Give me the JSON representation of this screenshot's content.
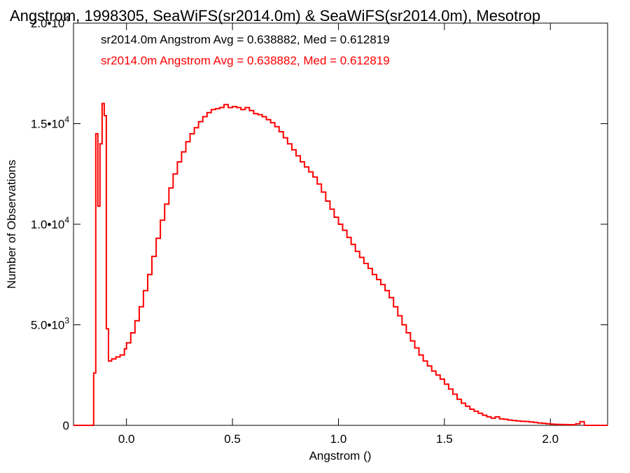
{
  "chart_data": {
    "type": "line",
    "title": "Angstrom, 1998305, SeaWiFS(sr2014.0m) & SeaWiFS(sr2014.0m), Mesotrop",
    "xlabel": "Angstrom ()",
    "ylabel": "Number of Observations",
    "xlim": [
      -0.25,
      2.27
    ],
    "ylim": [
      0,
      20000
    ],
    "xticks": [
      {
        "value": 0.0,
        "label": "0.0"
      },
      {
        "value": 0.5,
        "label": "0.5"
      },
      {
        "value": 1.0,
        "label": "1.0"
      },
      {
        "value": 1.5,
        "label": "1.5"
      },
      {
        "value": 2.0,
        "label": "2.0"
      }
    ],
    "yticks": [
      {
        "value": 0,
        "mant": "0",
        "exp": ""
      },
      {
        "value": 5000,
        "mant": "5.0•10",
        "exp": "3"
      },
      {
        "value": 10000,
        "mant": "1.0•10",
        "exp": "4"
      },
      {
        "value": 15000,
        "mant": "1.5•10",
        "exp": "4"
      },
      {
        "value": 20000,
        "mant": "2.0•10",
        "exp": "4"
      }
    ],
    "grid": false,
    "step": true,
    "annotations": [
      {
        "text": "sr2014.0m Angstrom Avg = 0.638882, Med = 0.612819",
        "color": "#000000"
      },
      {
        "text": "sr2014.0m Angstrom Avg = 0.638882, Med = 0.612819",
        "color": "#ff0000"
      }
    ],
    "series": [
      {
        "color": "#ff0000",
        "points": [
          [
            -0.25,
            0
          ],
          [
            -0.16,
            0
          ],
          [
            -0.155,
            2600
          ],
          [
            -0.145,
            14500
          ],
          [
            -0.135,
            10900
          ],
          [
            -0.125,
            14000
          ],
          [
            -0.115,
            16000
          ],
          [
            -0.105,
            15400
          ],
          [
            -0.095,
            4800
          ],
          [
            -0.085,
            3200
          ],
          [
            -0.07,
            3300
          ],
          [
            -0.05,
            3400
          ],
          [
            -0.03,
            3500
          ],
          [
            -0.01,
            3800
          ],
          [
            0.0,
            4100
          ],
          [
            0.02,
            4600
          ],
          [
            0.04,
            5200
          ],
          [
            0.06,
            5900
          ],
          [
            0.08,
            6700
          ],
          [
            0.1,
            7500
          ],
          [
            0.12,
            8400
          ],
          [
            0.14,
            9300
          ],
          [
            0.16,
            10200
          ],
          [
            0.18,
            11000
          ],
          [
            0.2,
            11800
          ],
          [
            0.22,
            12500
          ],
          [
            0.24,
            13100
          ],
          [
            0.26,
            13600
          ],
          [
            0.28,
            14100
          ],
          [
            0.3,
            14500
          ],
          [
            0.32,
            14800
          ],
          [
            0.34,
            15100
          ],
          [
            0.36,
            15350
          ],
          [
            0.38,
            15550
          ],
          [
            0.4,
            15700
          ],
          [
            0.42,
            15750
          ],
          [
            0.44,
            15800
          ],
          [
            0.46,
            15950
          ],
          [
            0.48,
            15800
          ],
          [
            0.5,
            15850
          ],
          [
            0.52,
            15800
          ],
          [
            0.54,
            15700
          ],
          [
            0.56,
            15800
          ],
          [
            0.58,
            15650
          ],
          [
            0.6,
            15500
          ],
          [
            0.62,
            15450
          ],
          [
            0.64,
            15350
          ],
          [
            0.66,
            15200
          ],
          [
            0.68,
            15050
          ],
          [
            0.7,
            14850
          ],
          [
            0.72,
            14600
          ],
          [
            0.74,
            14300
          ],
          [
            0.76,
            14000
          ],
          [
            0.78,
            13700
          ],
          [
            0.8,
            13400
          ],
          [
            0.82,
            13100
          ],
          [
            0.84,
            12850
          ],
          [
            0.86,
            12600
          ],
          [
            0.88,
            12350
          ],
          [
            0.9,
            12000
          ],
          [
            0.92,
            11600
          ],
          [
            0.94,
            11150
          ],
          [
            0.96,
            10750
          ],
          [
            0.98,
            10350
          ],
          [
            1.0,
            10000
          ],
          [
            1.02,
            9700
          ],
          [
            1.04,
            9350
          ],
          [
            1.06,
            9000
          ],
          [
            1.08,
            8650
          ],
          [
            1.1,
            8350
          ],
          [
            1.12,
            8050
          ],
          [
            1.14,
            7800
          ],
          [
            1.16,
            7500
          ],
          [
            1.18,
            7250
          ],
          [
            1.2,
            7000
          ],
          [
            1.22,
            6700
          ],
          [
            1.24,
            6350
          ],
          [
            1.26,
            5900
          ],
          [
            1.28,
            5450
          ],
          [
            1.3,
            5000
          ],
          [
            1.32,
            4600
          ],
          [
            1.34,
            4200
          ],
          [
            1.36,
            3850
          ],
          [
            1.38,
            3500
          ],
          [
            1.4,
            3200
          ],
          [
            1.42,
            2950
          ],
          [
            1.44,
            2700
          ],
          [
            1.46,
            2500
          ],
          [
            1.48,
            2300
          ],
          [
            1.5,
            2050
          ],
          [
            1.52,
            1800
          ],
          [
            1.54,
            1550
          ],
          [
            1.56,
            1300
          ],
          [
            1.58,
            1100
          ],
          [
            1.6,
            950
          ],
          [
            1.62,
            800
          ],
          [
            1.64,
            700
          ],
          [
            1.66,
            600
          ],
          [
            1.68,
            500
          ],
          [
            1.7,
            430
          ],
          [
            1.72,
            360
          ],
          [
            1.74,
            420
          ],
          [
            1.76,
            320
          ],
          [
            1.78,
            300
          ],
          [
            1.8,
            260
          ],
          [
            1.82,
            240
          ],
          [
            1.84,
            220
          ],
          [
            1.86,
            200
          ],
          [
            1.88,
            190
          ],
          [
            1.9,
            170
          ],
          [
            1.92,
            150
          ],
          [
            1.94,
            120
          ],
          [
            1.96,
            100
          ],
          [
            1.98,
            80
          ],
          [
            2.0,
            60
          ],
          [
            2.02,
            50
          ],
          [
            2.04,
            45
          ],
          [
            2.06,
            40
          ],
          [
            2.08,
            35
          ],
          [
            2.1,
            30
          ],
          [
            2.12,
            80
          ],
          [
            2.14,
            180
          ],
          [
            2.16,
            0
          ],
          [
            2.27,
            0
          ]
        ]
      }
    ]
  }
}
